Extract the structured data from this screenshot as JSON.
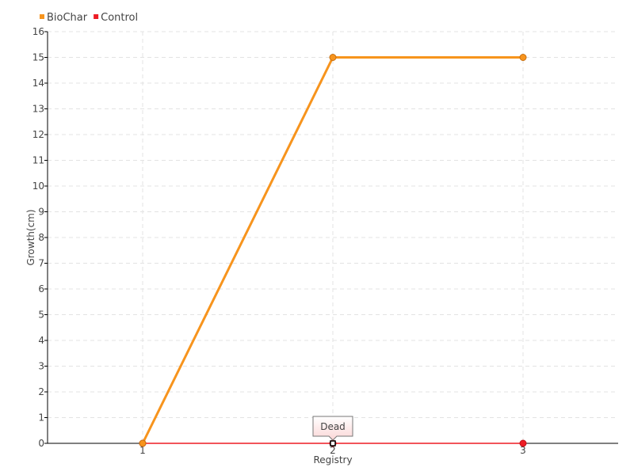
{
  "chart_data": {
    "type": "line",
    "title": "",
    "xlabel": "Registry",
    "ylabel": "Growth(cm)",
    "x": [
      1,
      2,
      3
    ],
    "xlim": [
      0.5,
      3.5
    ],
    "ylim": [
      0,
      16
    ],
    "yticks": [
      0,
      1,
      2,
      3,
      4,
      5,
      6,
      7,
      8,
      9,
      10,
      11,
      12,
      13,
      14,
      15,
      16
    ],
    "grid": true,
    "legend_position": "top-left",
    "series": [
      {
        "name": "BioChar",
        "values": [
          0,
          15,
          15
        ],
        "color": "#f7941d"
      },
      {
        "name": "Control",
        "values": [
          0,
          0,
          0
        ],
        "color": "#ed1c24"
      }
    ],
    "annotations": [
      {
        "text": "Dead",
        "x": 2,
        "y": 0,
        "series": "Control"
      }
    ]
  }
}
